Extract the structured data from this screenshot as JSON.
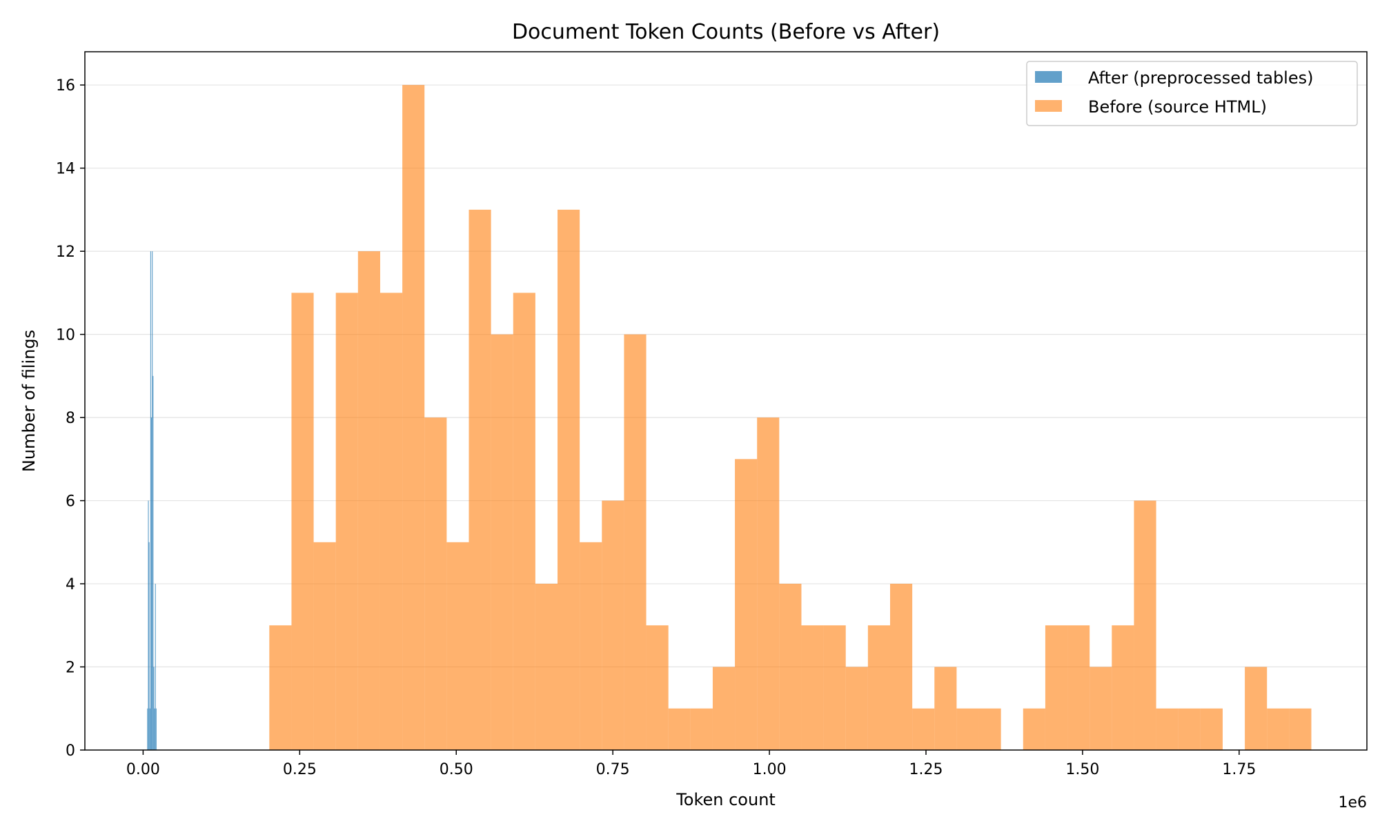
{
  "chart_data": {
    "type": "histogram",
    "title": "Document Token Counts (Before vs After)",
    "xlabel": "Token count",
    "ylabel": "Number of filings",
    "x_offset_label": "1e6",
    "xlim": [
      -0.093,
      1.954
    ],
    "ylim": [
      0,
      16.8
    ],
    "x_ticks": [
      0.0,
      0.25,
      0.5,
      0.75,
      1.0,
      1.25,
      1.5,
      1.75
    ],
    "x_tick_labels": [
      "0.00",
      "0.25",
      "0.50",
      "0.75",
      "1.00",
      "1.25",
      "1.50",
      "1.75"
    ],
    "y_ticks": [
      0,
      2,
      4,
      6,
      8,
      10,
      12,
      14,
      16
    ],
    "y_tick_labels": [
      "0",
      "2",
      "4",
      "6",
      "8",
      "10",
      "12",
      "14",
      "16"
    ],
    "grid": "y",
    "legend_position": "top-right",
    "x_scale_unit": "millions of tokens",
    "series": [
      {
        "name": "After (preprocessed tables)",
        "color": "#1f77b4",
        "opacity": 0.7,
        "bin_start": 0.0065,
        "bin_width": 0.00125,
        "counts": [
          1,
          6,
          5,
          1,
          12,
          8,
          12,
          9,
          2,
          1,
          4,
          1
        ]
      },
      {
        "name": "Before (source HTML)",
        "color": "#ff7f0e",
        "opacity": 0.6,
        "bin_start": 0.2015,
        "bin_width": 0.0354,
        "counts": [
          3,
          11,
          5,
          11,
          12,
          11,
          16,
          8,
          5,
          13,
          10,
          11,
          4,
          13,
          5,
          6,
          10,
          3,
          1,
          1,
          2,
          7,
          8,
          4,
          3,
          3,
          2,
          3,
          4,
          1,
          2,
          1,
          1,
          0,
          1,
          3,
          3,
          2,
          3,
          6,
          1,
          1,
          1,
          0,
          2,
          1,
          1
        ]
      }
    ]
  }
}
